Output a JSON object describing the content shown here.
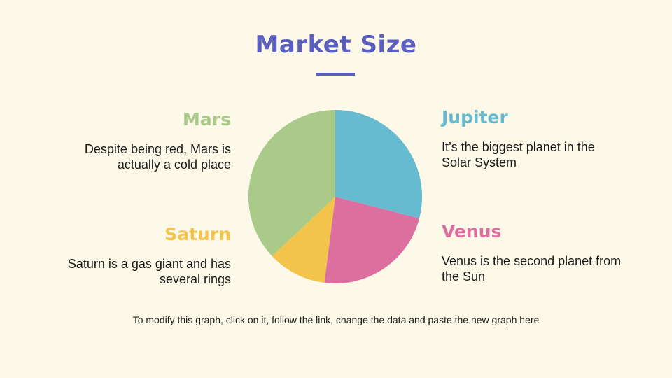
{
  "chart_data": {
    "type": "pie",
    "title": "Market Size",
    "slices": [
      {
        "name": "Jupiter",
        "value": 29,
        "color": "#66bbd0"
      },
      {
        "name": "Venus",
        "value": 23,
        "color": "#dc6fa0"
      },
      {
        "name": "Saturn",
        "value": 11,
        "color": "#f2c44c"
      },
      {
        "name": "Mars",
        "value": 37,
        "color": "#a9ca89"
      }
    ]
  },
  "labels": {
    "mars": {
      "name": "Mars",
      "desc": "Despite being red, Mars is actually a cold place",
      "color": "#a9ca89"
    },
    "saturn": {
      "name": "Saturn",
      "desc": "Saturn is a gas giant and has several rings",
      "color": "#f2c44c"
    },
    "jupiter": {
      "name": "Jupiter",
      "desc": "It’s the biggest planet in the Solar System",
      "color": "#66bbd0"
    },
    "venus": {
      "name": "Venus",
      "desc": "Venus is the second planet from the Sun",
      "color": "#dc6fa0"
    }
  },
  "footnote": "To modify this graph, click on it, follow the link, change the data and paste the new graph here",
  "colors": {
    "title": "#5b5fbf",
    "background": "#fdf9e8"
  }
}
